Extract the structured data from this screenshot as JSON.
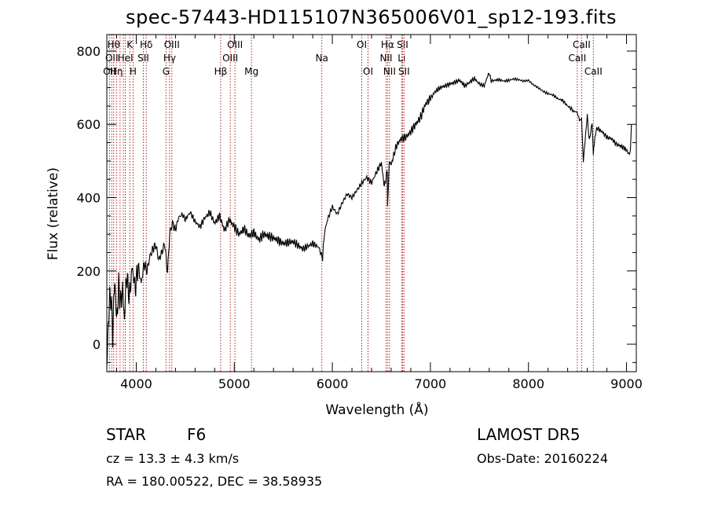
{
  "chart_data": {
    "type": "line",
    "title": "spec-57443-HD115107N365006V01_sp12-193.fits",
    "xlabel": "Wavelength (Å)",
    "ylabel": "Flux (relative)",
    "xlim": [
      3700,
      9100
    ],
    "ylim": [
      -75,
      845
    ],
    "xticks": [
      4000,
      5000,
      6000,
      7000,
      8000,
      9000
    ],
    "yticks": [
      0,
      200,
      400,
      600,
      800
    ],
    "grid": false,
    "legend": "none",
    "line_color": "#000000",
    "marker_color": "#b22222",
    "series": [
      {
        "x": [
          3700,
          3720,
          3740,
          3760,
          3780,
          3800,
          3820,
          3840,
          3860,
          3880,
          3900,
          3930,
          3960,
          3990,
          4020,
          4050,
          4080,
          4110,
          4140,
          4170,
          4200,
          4230,
          4260,
          4290,
          4320,
          4340,
          4370,
          4400,
          4430,
          4470,
          4500,
          4550,
          4600,
          4650,
          4700,
          4750,
          4800,
          4850,
          4900,
          4950,
          5000,
          5050,
          5100,
          5150,
          5200,
          5250,
          5300,
          5400,
          5500,
          5600,
          5700,
          5800,
          5860,
          5900,
          5920,
          5950,
          6000,
          6050,
          6100,
          6150,
          6200,
          6250,
          6300,
          6350,
          6400,
          6450,
          6500,
          6530,
          6560,
          6563,
          6580,
          6600,
          6650,
          6700,
          6750,
          6800,
          6850,
          6900,
          6950,
          7000,
          7050,
          7100,
          7150,
          7200,
          7250,
          7300,
          7350,
          7400,
          7450,
          7500,
          7550,
          7580,
          7600,
          7620,
          7650,
          7700,
          7750,
          7800,
          7850,
          7900,
          7950,
          8000,
          8050,
          8100,
          8150,
          8200,
          8250,
          8300,
          8350,
          8400,
          8450,
          8498,
          8520,
          8542,
          8560,
          8600,
          8620,
          8650,
          8662,
          8680,
          8700,
          8750,
          8800,
          8850,
          8900,
          8950,
          9000,
          9020,
          9040,
          9050
        ],
        "y": [
          -60,
          90,
          140,
          30,
          180,
          60,
          160,
          110,
          150,
          70,
          190,
          130,
          210,
          150,
          215,
          165,
          220,
          200,
          240,
          260,
          270,
          230,
          250,
          275,
          195,
          300,
          330,
          310,
          345,
          355,
          340,
          360,
          335,
          320,
          345,
          360,
          330,
          350,
          310,
          340,
          320,
          300,
          315,
          295,
          305,
          285,
          300,
          290,
          275,
          280,
          260,
          275,
          265,
          235,
          305,
          340,
          375,
          355,
          385,
          410,
          400,
          420,
          440,
          455,
          440,
          470,
          495,
          430,
          470,
          380,
          500,
          490,
          540,
          560,
          565,
          580,
          600,
          620,
          655,
          670,
          690,
          700,
          705,
          710,
          715,
          720,
          705,
          715,
          725,
          710,
          705,
          730,
          740,
          718,
          720,
          722,
          718,
          720,
          724,
          722,
          718,
          720,
          708,
          700,
          690,
          684,
          680,
          670,
          665,
          650,
          640,
          630,
          615,
          612,
          500,
          625,
          555,
          605,
          520,
          570,
          590,
          580,
          565,
          560,
          545,
          540,
          530,
          520,
          525,
          600
        ]
      }
    ],
    "lines": [
      {
        "x": 3727,
        "label": "OII",
        "row": 2
      },
      {
        "x": 3750,
        "label": "OII",
        "row": 1
      },
      {
        "x": 3770,
        "label": "Hθ",
        "row": 0
      },
      {
        "x": 3798,
        "label": "Hη",
        "row": 2
      },
      {
        "x": 3835,
        "label": "",
        "row": 0
      },
      {
        "x": 3869,
        "label": "",
        "row": 0
      },
      {
        "x": 3889,
        "label": "HeI",
        "row": 1
      },
      {
        "x": 3934,
        "label": "K",
        "row": 0
      },
      {
        "x": 3968,
        "label": "H",
        "row": 2
      },
      {
        "x": 4072,
        "label": "SII",
        "row": 1
      },
      {
        "x": 4102,
        "label": "Hδ",
        "row": 0
      },
      {
        "x": 4304,
        "label": "G",
        "row": 2
      },
      {
        "x": 4340,
        "label": "Hγ",
        "row": 1
      },
      {
        "x": 4363,
        "label": "OIII",
        "row": 0
      },
      {
        "x": 4861,
        "label": "Hβ",
        "row": 2
      },
      {
        "x": 4959,
        "label": "OIII",
        "row": 1
      },
      {
        "x": 5007,
        "label": "OIII",
        "row": 0
      },
      {
        "x": 5175,
        "label": "Mg",
        "row": 2
      },
      {
        "x": 5893,
        "label": "Na",
        "row": 1
      },
      {
        "x": 6300,
        "label": "OI",
        "row": 0
      },
      {
        "x": 6364,
        "label": "OI",
        "row": 2
      },
      {
        "x": 6548,
        "label": "NII",
        "row": 1
      },
      {
        "x": 6563,
        "label": "Hα",
        "row": 0
      },
      {
        "x": 6583,
        "label": "NII",
        "row": 2
      },
      {
        "x": 6707,
        "label": "Li",
        "row": 1
      },
      {
        "x": 6716,
        "label": "SII",
        "row": 0
      },
      {
        "x": 6731,
        "label": "SII",
        "row": 2
      },
      {
        "x": 8498,
        "label": "CaII",
        "row": 1
      },
      {
        "x": 8542,
        "label": "CaII",
        "row": 0
      },
      {
        "x": 8662,
        "label": "CaII",
        "row": 2
      }
    ]
  },
  "info": {
    "object": "STAR",
    "subclass": "F6",
    "survey": "LAMOST DR5",
    "cz": "cz = 13.3 ± 4.3 km/s",
    "obs_date": "Obs-Date: 20160224",
    "coords": "RA = 180.00522, DEC =  38.58935"
  }
}
